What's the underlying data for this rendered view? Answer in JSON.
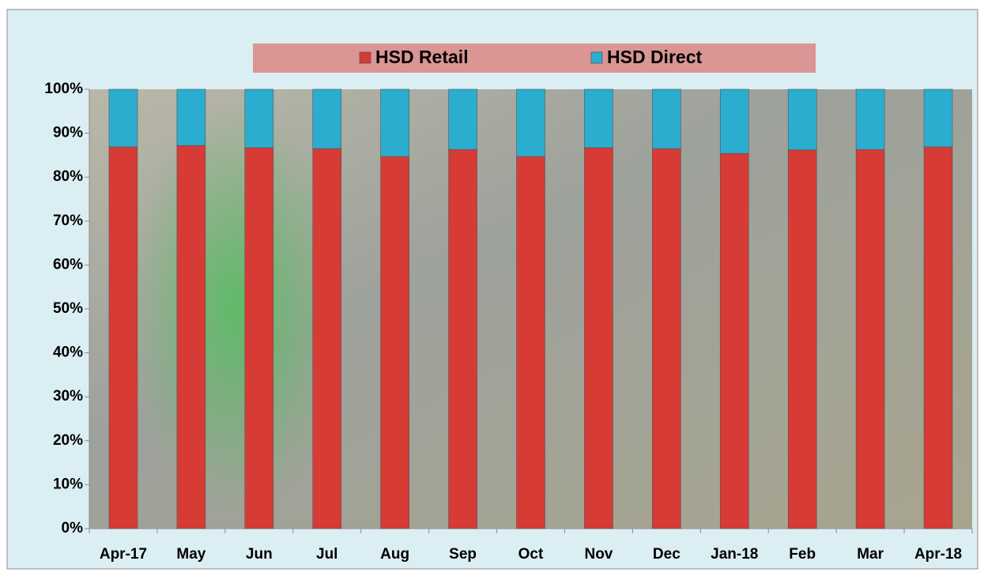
{
  "chart_data": {
    "type": "stacked-bar",
    "categories": [
      "Apr-17",
      "May",
      "Jun",
      "Jul",
      "Aug",
      "Sep",
      "Oct",
      "Nov",
      "Dec",
      "Jan-18",
      "Feb",
      "Mar",
      "Apr-18"
    ],
    "series": [
      {
        "name": "HSD Retail",
        "color": "#d63b35",
        "values": [
          86.9,
          87.2,
          86.7,
          86.5,
          84.7,
          86.3,
          84.7,
          86.7,
          86.5,
          85.4,
          86.2,
          86.3,
          86.9
        ]
      },
      {
        "name": "HSD Direct",
        "color": "#2badd0",
        "values": [
          13.1,
          12.8,
          13.3,
          13.5,
          15.3,
          13.7,
          15.3,
          13.3,
          13.5,
          14.6,
          13.8,
          13.7,
          13.1
        ]
      }
    ],
    "ylim": [
      0,
      100
    ],
    "yticks": [
      {
        "value": 0,
        "label": "0%"
      },
      {
        "value": 10,
        "label": "10%"
      },
      {
        "value": 20,
        "label": "20%"
      },
      {
        "value": 30,
        "label": "30%"
      },
      {
        "value": 40,
        "label": "40%"
      },
      {
        "value": 50,
        "label": "50%"
      },
      {
        "value": 60,
        "label": "60%"
      },
      {
        "value": 70,
        "label": "70%"
      },
      {
        "value": 80,
        "label": "80%"
      },
      {
        "value": 90,
        "label": "90%"
      },
      {
        "value": 100,
        "label": "100%"
      }
    ],
    "legend": "top"
  }
}
